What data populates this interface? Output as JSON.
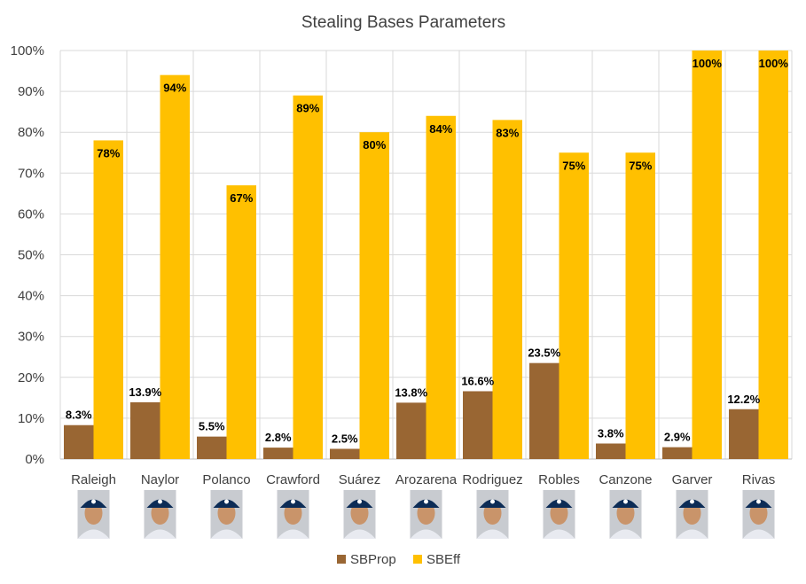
{
  "chart_data": {
    "type": "bar",
    "title": "Stealing Bases Parameters",
    "categories": [
      "Raleigh",
      "Naylor",
      "Polanco",
      "Crawford",
      "Suárez",
      "Arozarena",
      "Rodriguez",
      "Robles",
      "Canzone",
      "Garver",
      "Rivas"
    ],
    "series": [
      {
        "name": "SBProp",
        "color": "#996633",
        "values": [
          8.3,
          13.9,
          5.5,
          2.8,
          2.5,
          13.8,
          16.6,
          23.5,
          3.8,
          2.9,
          12.2
        ],
        "labels": [
          "8.3%",
          "13.9%",
          "5.5%",
          "2.8%",
          "2.5%",
          "13.8%",
          "16.6%",
          "23.5%",
          "3.8%",
          "2.9%",
          "12.2%"
        ]
      },
      {
        "name": "SBEff",
        "color": "#FFC000",
        "values": [
          78,
          94,
          67,
          89,
          80,
          84,
          83,
          75,
          75,
          100,
          100
        ],
        "labels": [
          "78%",
          "94%",
          "67%",
          "89%",
          "80%",
          "84%",
          "83%",
          "75%",
          "75%",
          "100%",
          "100%"
        ]
      }
    ],
    "ylim": [
      0,
      100
    ],
    "yticks": [
      "0%",
      "10%",
      "20%",
      "30%",
      "40%",
      "50%",
      "60%",
      "70%",
      "80%",
      "90%",
      "100%"
    ],
    "grid": true,
    "legend_position": "bottom",
    "xlabel": "",
    "ylabel": ""
  }
}
